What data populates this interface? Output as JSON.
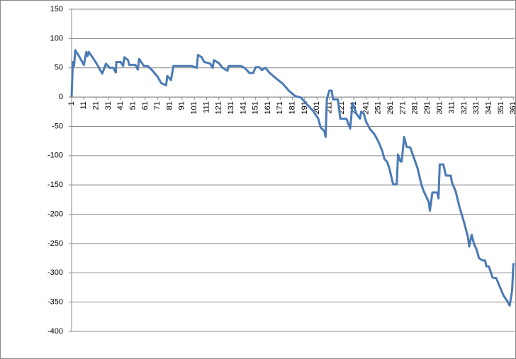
{
  "chart_data": {
    "type": "line",
    "x": [
      1,
      2,
      3,
      4,
      7,
      11,
      13,
      14,
      15,
      18,
      22,
      26,
      29,
      32,
      35,
      37,
      37.5,
      41,
      43,
      44,
      47,
      48,
      53,
      55,
      56,
      60,
      63,
      67,
      71,
      74,
      78,
      79,
      82,
      84,
      99,
      103,
      104,
      107,
      109,
      114,
      116,
      117,
      121,
      124,
      128,
      129,
      139,
      142,
      146,
      149,
      151,
      154,
      156,
      159,
      162,
      167,
      173,
      178,
      183,
      188,
      193,
      198,
      202,
      204,
      207,
      208,
      209,
      211,
      213,
      214,
      218,
      220,
      225,
      228,
      230,
      232,
      233,
      236,
      237,
      239,
      241,
      244,
      248,
      251,
      254,
      256,
      258,
      260,
      263,
      266,
      267,
      269,
      270,
      272,
      274,
      277,
      279,
      283,
      286,
      288,
      292,
      293,
      295,
      299,
      300,
      301,
      304,
      306,
      310,
      311,
      314,
      317,
      321,
      324,
      325,
      327,
      329,
      331,
      333,
      336,
      338,
      339,
      341,
      344,
      347,
      350,
      353,
      356,
      358,
      360,
      361,
      362
    ],
    "series": [
      {
        "color": "#4a7ab5",
        "values": [
          0,
          60,
          53,
          80,
          70,
          55,
          77,
          70,
          77,
          68,
          55,
          40,
          57,
          50,
          50,
          42,
          60,
          60,
          53,
          68,
          63,
          55,
          55,
          47,
          65,
          53,
          53,
          45,
          35,
          24,
          20,
          36,
          29,
          53,
          53,
          50,
          72,
          68,
          60,
          57,
          50,
          63,
          58,
          50,
          45,
          53,
          53,
          50,
          41,
          41,
          51,
          51,
          46,
          50,
          42,
          33,
          23,
          11,
          2,
          -1,
          -13,
          -24,
          -37,
          -52,
          -58,
          -68,
          -4,
          11,
          11,
          -4,
          -4,
          -37,
          -37,
          -54,
          -10,
          -22,
          -28,
          -37,
          -25,
          -28,
          -42,
          -54,
          -64,
          -76,
          -91,
          -106,
          -110,
          -122,
          -149,
          -149,
          -98,
          -110,
          -110,
          -68,
          -85,
          -86,
          -98,
          -122,
          -149,
          -161,
          -179,
          -194,
          -163,
          -163,
          -173,
          -115,
          -115,
          -134,
          -134,
          -146,
          -161,
          -187,
          -215,
          -239,
          -255,
          -235,
          -251,
          -260,
          -275,
          -279,
          -279,
          -289,
          -289,
          -308,
          -309,
          -324,
          -339,
          -348,
          -356,
          -330,
          -285,
          -285
        ]
      }
    ],
    "xlim": [
      1,
      362
    ],
    "xticks": [
      1,
      11,
      21,
      31,
      41,
      51,
      61,
      71,
      81,
      91,
      101,
      111,
      121,
      131,
      141,
      151,
      161,
      171,
      181,
      191,
      201,
      211,
      221,
      231,
      241,
      251,
      261,
      271,
      281,
      291,
      301,
      311,
      321,
      331,
      341,
      351,
      361
    ],
    "ylim": [
      -400,
      150
    ],
    "yticks": [
      -400,
      -350,
      -300,
      -250,
      -200,
      -150,
      -100,
      -50,
      0,
      50,
      100,
      150
    ],
    "grid": true
  }
}
